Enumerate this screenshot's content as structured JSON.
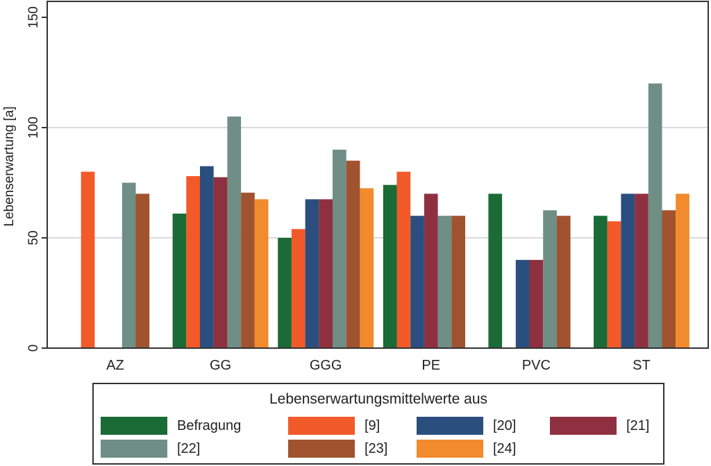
{
  "chart_data": {
    "type": "bar",
    "title": "",
    "xlabel": "",
    "ylabel": "Lebenserwartung [a]",
    "ylim": [
      0,
      150
    ],
    "yticks": [
      0,
      50,
      100,
      150
    ],
    "grid": true,
    "categories": [
      "AZ",
      "GG",
      "GGG",
      "PE",
      "PVC",
      "ST"
    ],
    "series": [
      {
        "name": "Befragung",
        "color": "#1a6b36",
        "values": [
          null,
          61,
          50,
          74,
          70,
          60
        ]
      },
      {
        "name": "[9]",
        "color": "#f25a2a",
        "values": [
          80,
          78,
          54,
          80,
          null,
          57.5
        ]
      },
      {
        "name": "[20]",
        "color": "#2a4f7e",
        "values": [
          null,
          82.5,
          67.5,
          60,
          40,
          70
        ]
      },
      {
        "name": "[21]",
        "color": "#8f3040",
        "values": [
          null,
          77.5,
          67.5,
          70,
          40,
          70
        ]
      },
      {
        "name": "[22]",
        "color": "#6e8e86",
        "values": [
          75,
          105,
          90,
          60,
          62.5,
          120
        ]
      },
      {
        "name": "[23]",
        "color": "#a0532e",
        "values": [
          70,
          70.5,
          85,
          60,
          60,
          62.5
        ]
      },
      {
        "name": "[24]",
        "color": "#f28a2e",
        "values": [
          null,
          67.5,
          72.5,
          null,
          null,
          70
        ]
      }
    ],
    "legend": {
      "title": "Lebenserwartungsmittelwerte aus",
      "placement": "bottom",
      "columns": 4
    }
  }
}
